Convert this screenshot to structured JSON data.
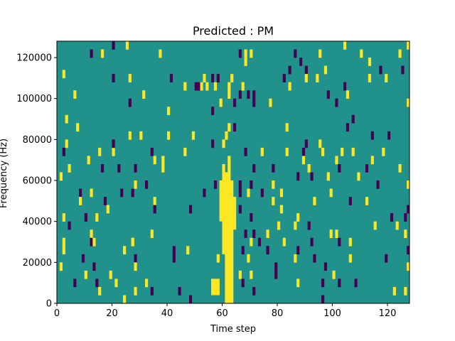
{
  "chart_data": {
    "type": "heatmap",
    "title": "Predicted : PM",
    "xlabel": "Time step",
    "ylabel": "Frequency (Hz)",
    "xlim": [
      0,
      128
    ],
    "ylim": [
      0,
      128000
    ],
    "x_ticks": [
      0,
      20,
      40,
      60,
      80,
      100,
      120
    ],
    "y_ticks": [
      0,
      20000,
      40000,
      60000,
      80000,
      100000,
      120000
    ],
    "x_tick_labels": [
      "0",
      "20",
      "40",
      "60",
      "80",
      "100",
      "120"
    ],
    "y_tick_labels": [
      "0",
      "20000",
      "40000",
      "60000",
      "80000",
      "100000",
      "120000"
    ],
    "background_value": 0,
    "legend": "none",
    "colors": {
      "high": "#fde725",
      "background": "#21918c",
      "low": "#440154"
    },
    "notable_structure": "bright vertical band around time steps 59-65 spanning roughly 0-65000 Hz",
    "cells": [
      {
        "t": 2,
        "f": 110000,
        "v": 1
      },
      {
        "t": 3,
        "f": 76000,
        "v": 1
      },
      {
        "t": 2,
        "f": 72000,
        "v": -1
      },
      {
        "t": 4,
        "f": 64000,
        "v": 1
      },
      {
        "t": 1,
        "f": 60000,
        "v": 1
      },
      {
        "t": 2,
        "f": 40000,
        "v": 1
      },
      {
        "t": 4,
        "f": 36000,
        "v": -1
      },
      {
        "t": 2,
        "f": 28000,
        "v": 1
      },
      {
        "t": 2,
        "f": 24000,
        "v": 1
      },
      {
        "t": 1,
        "f": 16000,
        "v": 1
      },
      {
        "t": 3,
        "f": 88000,
        "v": 1
      },
      {
        "t": 6,
        "f": 100000,
        "v": 1
      },
      {
        "t": 6,
        "f": 8000,
        "v": -1
      },
      {
        "t": 7,
        "f": 84000,
        "v": 1
      },
      {
        "t": 8,
        "f": 52000,
        "v": -1
      },
      {
        "t": 8,
        "f": 48000,
        "v": 1
      },
      {
        "t": 9,
        "f": 20000,
        "v": -1
      },
      {
        "t": 10,
        "f": 12000,
        "v": 1
      },
      {
        "t": 10,
        "f": 40000,
        "v": -1
      },
      {
        "t": 11,
        "f": 68000,
        "v": 1
      },
      {
        "t": 12,
        "f": 120000,
        "v": -1
      },
      {
        "t": 12,
        "f": 52000,
        "v": 1
      },
      {
        "t": 12,
        "f": 32000,
        "v": 1
      },
      {
        "t": 12,
        "f": 28000,
        "v": -1
      },
      {
        "t": 13,
        "f": 28000,
        "v": 1
      },
      {
        "t": 13,
        "f": 16000,
        "v": -1
      },
      {
        "t": 14,
        "f": 40000,
        "v": 1
      },
      {
        "t": 14,
        "f": 8000,
        "v": -1
      },
      {
        "t": 15,
        "f": 4000,
        "v": 1
      },
      {
        "t": 15,
        "f": 72000,
        "v": 1
      },
      {
        "t": 16,
        "f": 120000,
        "v": 1
      },
      {
        "t": 16,
        "f": 64000,
        "v": -1
      },
      {
        "t": 17,
        "f": 48000,
        "v": -1
      },
      {
        "t": 18,
        "f": 44000,
        "v": 1
      },
      {
        "t": 19,
        "f": 12000,
        "v": 1
      },
      {
        "t": 20,
        "f": 124000,
        "v": -1
      },
      {
        "t": 20,
        "f": 108000,
        "v": -1
      },
      {
        "t": 20,
        "f": 72000,
        "v": 1
      },
      {
        "t": 20,
        "f": 76000,
        "v": -1
      },
      {
        "t": 21,
        "f": 8000,
        "v": 1
      },
      {
        "t": 22,
        "f": 64000,
        "v": -1
      },
      {
        "t": 23,
        "f": 52000,
        "v": -1
      },
      {
        "t": 24,
        "f": 24000,
        "v": 1
      },
      {
        "t": 25,
        "f": 124000,
        "v": 1
      },
      {
        "t": 24,
        "f": 0,
        "v": 1
      },
      {
        "t": 26,
        "f": 108000,
        "v": 1
      },
      {
        "t": 26,
        "f": 96000,
        "v": -1
      },
      {
        "t": 26,
        "f": 80000,
        "v": 1
      },
      {
        "t": 27,
        "f": 52000,
        "v": -1
      },
      {
        "t": 28,
        "f": 64000,
        "v": -1
      },
      {
        "t": 28,
        "f": 56000,
        "v": 1
      },
      {
        "t": 27,
        "f": 28000,
        "v": 1
      },
      {
        "t": 28,
        "f": 20000,
        "v": -1
      },
      {
        "t": 28,
        "f": 16000,
        "v": 1
      },
      {
        "t": 28,
        "f": 4000,
        "v": 1
      },
      {
        "t": 27,
        "f": 28000,
        "v": 1
      },
      {
        "t": 30,
        "f": 80000,
        "v": 1
      },
      {
        "t": 31,
        "f": 100000,
        "v": 1
      },
      {
        "t": 32,
        "f": 56000,
        "v": -1
      },
      {
        "t": 32,
        "f": 8000,
        "v": 1
      },
      {
        "t": 34,
        "f": 72000,
        "v": -1
      },
      {
        "t": 35,
        "f": 68000,
        "v": 1
      },
      {
        "t": 35,
        "f": 48000,
        "v": 1
      },
      {
        "t": 35,
        "f": 44000,
        "v": -1
      },
      {
        "t": 34,
        "f": 32000,
        "v": 1
      },
      {
        "t": 34,
        "f": 4000,
        "v": -1
      },
      {
        "t": 37,
        "f": 120000,
        "v": 1
      },
      {
        "t": 38,
        "f": 68000,
        "v": 1
      },
      {
        "t": 38,
        "f": 64000,
        "v": 1
      },
      {
        "t": 40,
        "f": 92000,
        "v": 1
      },
      {
        "t": 41,
        "f": 108000,
        "v": -1
      },
      {
        "t": 40,
        "f": 80000,
        "v": 1
      },
      {
        "t": 42,
        "f": 24000,
        "v": -1
      },
      {
        "t": 42,
        "f": 20000,
        "v": -1
      },
      {
        "t": 44,
        "f": 4000,
        "v": -1
      },
      {
        "t": 46,
        "f": 104000,
        "v": 1
      },
      {
        "t": 46,
        "f": 72000,
        "v": 1
      },
      {
        "t": 47,
        "f": 24000,
        "v": 1
      },
      {
        "t": 48,
        "f": 44000,
        "v": -1
      },
      {
        "t": 48,
        "f": 0,
        "v": -1
      },
      {
        "t": 49,
        "f": 80000,
        "v": 1
      },
      {
        "t": 50,
        "f": 104000,
        "v": -1
      },
      {
        "t": 51,
        "f": 104000,
        "v": -1
      },
      {
        "t": 52,
        "f": 104000,
        "v": 1
      },
      {
        "t": 53,
        "f": 108000,
        "v": 1
      },
      {
        "t": 53,
        "f": 52000,
        "v": -1
      },
      {
        "t": 54,
        "f": 104000,
        "v": 1
      },
      {
        "t": 56,
        "f": 108000,
        "v": -1
      },
      {
        "t": 56,
        "f": 92000,
        "v": -1
      },
      {
        "t": 56,
        "f": 76000,
        "v": -1
      },
      {
        "t": 57,
        "f": 104000,
        "v": 1
      },
      {
        "t": 58,
        "f": 108000,
        "v": -1
      },
      {
        "t": 57,
        "f": 56000,
        "v": -1
      },
      {
        "t": 58,
        "f": 20000,
        "v": 1
      },
      {
        "t": 59,
        "f": 96000,
        "v": 1
      },
      {
        "t": 60,
        "f": 76000,
        "v": 1
      },
      {
        "t": 61,
        "f": 80000,
        "v": 1
      },
      {
        "t": 62,
        "f": 84000,
        "v": 1
      },
      {
        "t": 62,
        "f": 100000,
        "v": 1
      },
      {
        "t": 62,
        "f": 104000,
        "v": 1
      },
      {
        "t": 63,
        "f": 108000,
        "v": 1
      },
      {
        "t": 64,
        "f": 84000,
        "v": -1
      },
      {
        "t": 64,
        "f": 96000,
        "v": -1
      },
      {
        "t": 66,
        "f": 100000,
        "v": -1
      },
      {
        "t": 67,
        "f": 104000,
        "v": 1
      },
      {
        "t": 66,
        "f": 120000,
        "v": -1
      },
      {
        "t": 68,
        "f": 120000,
        "v": 1
      },
      {
        "t": 68,
        "f": 116000,
        "v": 1
      },
      {
        "t": 70,
        "f": 120000,
        "v": 1
      },
      {
        "t": 69,
        "f": 100000,
        "v": -1
      },
      {
        "t": 71,
        "f": 100000,
        "v": -1
      },
      {
        "t": 71,
        "f": 96000,
        "v": -1
      },
      {
        "t": 68,
        "f": 72000,
        "v": -1
      },
      {
        "t": 71,
        "f": 64000,
        "v": -1
      },
      {
        "t": 66,
        "f": 56000,
        "v": -1
      },
      {
        "t": 66,
        "f": 52000,
        "v": -1
      },
      {
        "t": 70,
        "f": 56000,
        "v": -1
      },
      {
        "t": 69,
        "f": 52000,
        "v": 1
      },
      {
        "t": 66,
        "f": 44000,
        "v": -1
      },
      {
        "t": 70,
        "f": 40000,
        "v": -1
      },
      {
        "t": 68,
        "f": 32000,
        "v": -1
      },
      {
        "t": 70,
        "f": 28000,
        "v": 1
      },
      {
        "t": 71,
        "f": 32000,
        "v": -1
      },
      {
        "t": 67,
        "f": 24000,
        "v": -1
      },
      {
        "t": 69,
        "f": 20000,
        "v": 1
      },
      {
        "t": 66,
        "f": 12000,
        "v": 1
      },
      {
        "t": 67,
        "f": 8000,
        "v": -1
      },
      {
        "t": 70,
        "f": 12000,
        "v": 1
      },
      {
        "t": 71,
        "f": 4000,
        "v": -1
      },
      {
        "t": 73,
        "f": 28000,
        "v": -1
      },
      {
        "t": 74,
        "f": 72000,
        "v": 1
      },
      {
        "t": 74,
        "f": 52000,
        "v": -1
      },
      {
        "t": 76,
        "f": 32000,
        "v": 1
      },
      {
        "t": 76,
        "f": 24000,
        "v": -1
      },
      {
        "t": 77,
        "f": 96000,
        "v": 1
      },
      {
        "t": 78,
        "f": 64000,
        "v": -1
      },
      {
        "t": 78,
        "f": 56000,
        "v": 1
      },
      {
        "t": 78,
        "f": 48000,
        "v": 1
      },
      {
        "t": 79,
        "f": 16000,
        "v": -1
      },
      {
        "t": 79,
        "f": 12000,
        "v": -1
      },
      {
        "t": 80,
        "f": 36000,
        "v": 1
      },
      {
        "t": 81,
        "f": 52000,
        "v": 1
      },
      {
        "t": 81,
        "f": 44000,
        "v": 1
      },
      {
        "t": 82,
        "f": 108000,
        "v": -1
      },
      {
        "t": 82,
        "f": 28000,
        "v": 1
      },
      {
        "t": 83,
        "f": 84000,
        "v": 1
      },
      {
        "t": 83,
        "f": 72000,
        "v": 1
      },
      {
        "t": 84,
        "f": 112000,
        "v": -1
      },
      {
        "t": 84,
        "f": 104000,
        "v": 1
      },
      {
        "t": 86,
        "f": 120000,
        "v": -1
      },
      {
        "t": 86,
        "f": 36000,
        "v": 1
      },
      {
        "t": 86,
        "f": 20000,
        "v": 1
      },
      {
        "t": 87,
        "f": 24000,
        "v": -1
      },
      {
        "t": 87,
        "f": 8000,
        "v": 1
      },
      {
        "t": 87,
        "f": 40000,
        "v": 1
      },
      {
        "t": 87,
        "f": 60000,
        "v": -1
      },
      {
        "t": 88,
        "f": 116000,
        "v": -1
      },
      {
        "t": 90,
        "f": 112000,
        "v": -1
      },
      {
        "t": 90,
        "f": 108000,
        "v": 1
      },
      {
        "t": 89,
        "f": 72000,
        "v": -1
      },
      {
        "t": 89,
        "f": 68000,
        "v": 1
      },
      {
        "t": 90,
        "f": 76000,
        "v": -1
      },
      {
        "t": 91,
        "f": 64000,
        "v": 1
      },
      {
        "t": 92,
        "f": 60000,
        "v": -1
      },
      {
        "t": 91,
        "f": 36000,
        "v": -1
      },
      {
        "t": 93,
        "f": 48000,
        "v": 1
      },
      {
        "t": 92,
        "f": 28000,
        "v": -1
      },
      {
        "t": 93,
        "f": 20000,
        "v": -1
      },
      {
        "t": 94,
        "f": 108000,
        "v": 1
      },
      {
        "t": 95,
        "f": 120000,
        "v": 1
      },
      {
        "t": 95,
        "f": 76000,
        "v": 1
      },
      {
        "t": 96,
        "f": 72000,
        "v": 1
      },
      {
        "t": 96,
        "f": 8000,
        "v": -1
      },
      {
        "t": 96,
        "f": 0,
        "v": -1
      },
      {
        "t": 97,
        "f": 112000,
        "v": 1
      },
      {
        "t": 97,
        "f": 16000,
        "v": -1
      },
      {
        "t": 98,
        "f": 100000,
        "v": -1
      },
      {
        "t": 98,
        "f": 60000,
        "v": 1
      },
      {
        "t": 99,
        "f": 52000,
        "v": 1
      },
      {
        "t": 99,
        "f": 32000,
        "v": 1
      },
      {
        "t": 100,
        "f": 12000,
        "v": 1
      },
      {
        "t": 101,
        "f": 68000,
        "v": 1
      },
      {
        "t": 101,
        "f": 32000,
        "v": 1
      },
      {
        "t": 102,
        "f": 28000,
        "v": -1
      },
      {
        "t": 102,
        "f": 8000,
        "v": -1
      },
      {
        "t": 102,
        "f": 64000,
        "v": -1
      },
      {
        "t": 101,
        "f": 96000,
        "v": -1
      },
      {
        "t": 103,
        "f": 72000,
        "v": 1
      },
      {
        "t": 104,
        "f": 104000,
        "v": -1
      },
      {
        "t": 104,
        "f": 124000,
        "v": 1
      },
      {
        "t": 105,
        "f": 100000,
        "v": 1
      },
      {
        "t": 105,
        "f": 84000,
        "v": -1
      },
      {
        "t": 106,
        "f": 28000,
        "v": 1
      },
      {
        "t": 106,
        "f": 20000,
        "v": 1
      },
      {
        "t": 106,
        "f": 48000,
        "v": -1
      },
      {
        "t": 107,
        "f": 88000,
        "v": -1
      },
      {
        "t": 107,
        "f": 72000,
        "v": 1
      },
      {
        "t": 108,
        "f": 8000,
        "v": -1
      },
      {
        "t": 109,
        "f": 60000,
        "v": 1
      },
      {
        "t": 110,
        "f": 120000,
        "v": 1
      },
      {
        "t": 112,
        "f": 64000,
        "v": -1
      },
      {
        "t": 112,
        "f": 48000,
        "v": 1
      },
      {
        "t": 113,
        "f": 116000,
        "v": 1
      },
      {
        "t": 113,
        "f": 108000,
        "v": 1
      },
      {
        "t": 114,
        "f": 68000,
        "v": 1
      },
      {
        "t": 114,
        "f": 80000,
        "v": -1
      },
      {
        "t": 115,
        "f": 36000,
        "v": 1
      },
      {
        "t": 116,
        "f": 56000,
        "v": -1
      },
      {
        "t": 117,
        "f": 112000,
        "v": -1
      },
      {
        "t": 118,
        "f": 72000,
        "v": 1
      },
      {
        "t": 119,
        "f": 108000,
        "v": 1
      },
      {
        "t": 119,
        "f": 20000,
        "v": -1
      },
      {
        "t": 120,
        "f": 80000,
        "v": -1
      },
      {
        "t": 121,
        "f": 40000,
        "v": -1
      },
      {
        "t": 122,
        "f": 4000,
        "v": 1
      },
      {
        "t": 123,
        "f": 36000,
        "v": 1
      },
      {
        "t": 124,
        "f": 120000,
        "v": 1
      },
      {
        "t": 124,
        "f": 64000,
        "v": 1
      },
      {
        "t": 125,
        "f": 112000,
        "v": -1
      },
      {
        "t": 126,
        "f": 32000,
        "v": 1
      },
      {
        "t": 126,
        "f": 40000,
        "v": -1
      },
      {
        "t": 127,
        "f": 44000,
        "v": -1
      },
      {
        "t": 127,
        "f": 56000,
        "v": 1
      },
      {
        "t": 127,
        "f": 124000,
        "v": 1
      },
      {
        "t": 127,
        "f": 96000,
        "v": 1
      },
      {
        "t": 127,
        "f": 24000,
        "v": -1
      },
      {
        "t": 127,
        "f": 16000,
        "v": 1
      },
      {
        "t": 126,
        "f": 4000,
        "v": 1
      }
    ],
    "band": [
      {
        "t": 59,
        "f_from": 40000,
        "f_to": 56000
      },
      {
        "t": 60,
        "f_from": 24000,
        "f_to": 64000
      },
      {
        "t": 61,
        "f_from": 0,
        "f_to": 60000
      },
      {
        "t": 62,
        "f_from": 0,
        "f_to": 68000
      },
      {
        "t": 63,
        "f_from": 0,
        "f_to": 56000
      },
      {
        "t": 64,
        "f_from": 36000,
        "f_to": 48000
      },
      {
        "t": 56,
        "f_from": 4000,
        "f_to": 8000
      },
      {
        "t": 58,
        "f_from": 4000,
        "f_to": 8000
      },
      {
        "t": 57,
        "f_from": 4000,
        "f_to": 8000
      }
    ]
  }
}
